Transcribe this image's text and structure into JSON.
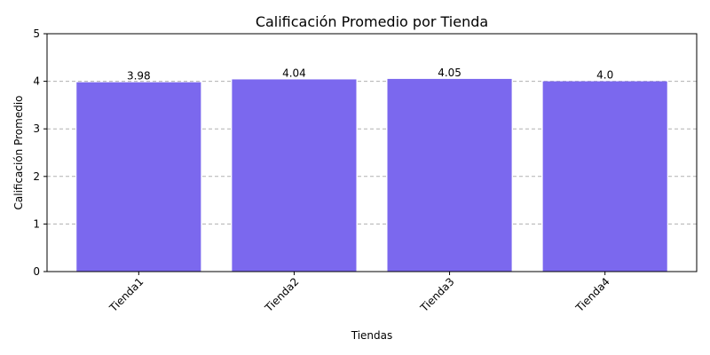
{
  "chart_data": {
    "type": "bar",
    "title": "Calificación Promedio por Tienda",
    "xlabel": "Tiendas",
    "ylabel": "Calificación Promedio",
    "categories": [
      "Tienda1",
      "Tienda2",
      "Tienda3",
      "Tienda4"
    ],
    "values": [
      3.98,
      4.04,
      4.05,
      4.0
    ],
    "data_labels": [
      "3.98",
      "4.04",
      "4.05",
      "4.0"
    ],
    "ylim": [
      0,
      5
    ],
    "yticks": [
      0,
      1,
      2,
      3,
      4,
      5
    ],
    "ytick_labels": [
      "0",
      "1",
      "2",
      "3",
      "4",
      "5"
    ],
    "grid": "y, dashed",
    "bar_color": "#7b68ee",
    "xtick_rotation": "45"
  }
}
